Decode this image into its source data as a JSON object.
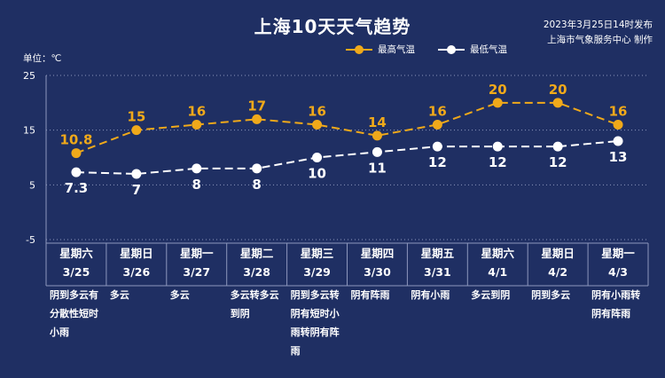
{
  "header": {
    "title": "上海10天天气趋势",
    "publish_time": "2023年3月25日14时发布",
    "publisher": "上海市气象服务中心 制作"
  },
  "unit_label": "单位：℃",
  "colors": {
    "background": "#1f2f63",
    "high": "#f0a91a",
    "low": "#ffffff",
    "grid": "#8d97bd"
  },
  "chart_data": {
    "type": "line",
    "y_ticks": [
      25,
      15,
      5,
      -5
    ],
    "ylim": [
      -5,
      25
    ],
    "grid": true,
    "legend_position": "top",
    "categories": [
      {
        "weekday": "星期六",
        "date": "3/25",
        "weather": [
          "阴到多云有",
          "分散性短时",
          "小雨"
        ]
      },
      {
        "weekday": "星期日",
        "date": "3/26",
        "weather": [
          "多云"
        ]
      },
      {
        "weekday": "星期一",
        "date": "3/27",
        "weather": [
          "多云"
        ]
      },
      {
        "weekday": "星期二",
        "date": "3/28",
        "weather": [
          "多云转多云",
          "到阴"
        ]
      },
      {
        "weekday": "星期三",
        "date": "3/29",
        "weather": [
          "阴到多云转",
          "阴有短时小",
          "雨转阴有阵",
          "雨"
        ]
      },
      {
        "weekday": "星期四",
        "date": "3/30",
        "weather": [
          "阴有阵雨"
        ]
      },
      {
        "weekday": "星期五",
        "date": "3/31",
        "weather": [
          "阴有小雨"
        ]
      },
      {
        "weekday": "星期六",
        "date": "4/1",
        "weather": [
          "多云到阴"
        ]
      },
      {
        "weekday": "星期日",
        "date": "4/2",
        "weather": [
          "阴到多云"
        ]
      },
      {
        "weekday": "星期一",
        "date": "4/3",
        "weather": [
          "阴有小雨转",
          "阴有阵雨"
        ]
      }
    ],
    "series": [
      {
        "name": "最高气温",
        "values": [
          10.8,
          15,
          16,
          17,
          16,
          14,
          16,
          20,
          20,
          16
        ],
        "labels": [
          "10.8",
          "15",
          "16",
          "17",
          "16",
          "14",
          "16",
          "20",
          "20",
          "16"
        ]
      },
      {
        "name": "最低气温",
        "values": [
          7.3,
          7,
          8,
          8,
          10,
          11,
          12,
          12,
          12,
          13
        ],
        "labels": [
          "7.3",
          "7",
          "8",
          "8",
          "10",
          "11",
          "12",
          "12",
          "12",
          "13"
        ]
      }
    ]
  }
}
